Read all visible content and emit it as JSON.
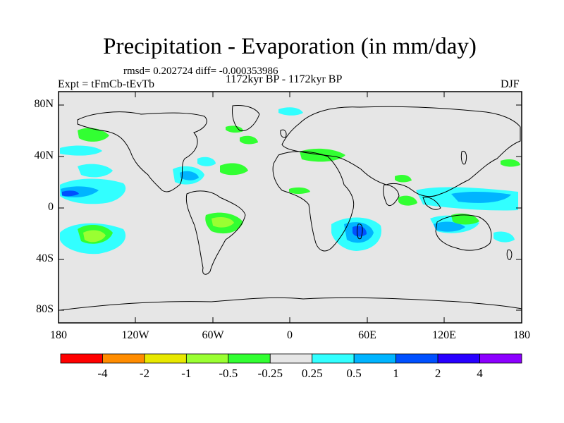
{
  "title": "Precipitation - Evaporation (in mm/day)",
  "stats": "rmsd= 0.202724 diff= -0.000353986",
  "expt": "Expt = tFmCb-tEvTb",
  "period": "1172kyr BP - 1172kyr BP",
  "season": "DJF",
  "map": {
    "projection": "cylindrical equidistant",
    "lon_range": [
      -180,
      180
    ],
    "lat_range": [
      -90,
      90
    ],
    "x_ticks": [
      "180",
      "120W",
      "60W",
      "0",
      "60E",
      "120E",
      "180"
    ],
    "y_ticks": [
      "80N",
      "40N",
      "0",
      "40S",
      "80S"
    ]
  },
  "colorbar": {
    "labels": [
      "-4",
      "-2",
      "-1",
      "-0.5",
      "-0.25",
      "0.25",
      "0.5",
      "1",
      "2",
      "4"
    ],
    "colors": [
      "#ff0000",
      "#ff8c00",
      "#e8e800",
      "#9aff32",
      "#32ff32",
      "#e6e6e6",
      "#32ffff",
      "#00b4ff",
      "#0050ff",
      "#2800ff",
      "#8c00ff"
    ]
  },
  "colors": {
    "background": "#e6e6e6",
    "moist_light": "#32ffff",
    "moist_medium": "#00b4ff",
    "moist_strong": "#0050ff",
    "dry_light": "#32ff32",
    "dry_medium": "#9aff32"
  }
}
